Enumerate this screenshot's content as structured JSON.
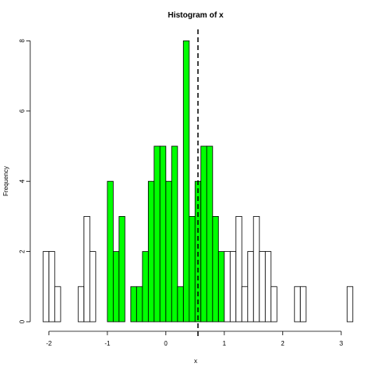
{
  "chart_data": {
    "type": "histogram",
    "title": "Histogram of x",
    "xlabel": "x",
    "ylabel": "Frequency",
    "xlim": [
      -2.15,
      3.2
    ],
    "ylim": [
      0,
      8.4
    ],
    "x_ticks": [
      -2,
      -1,
      0,
      1,
      2,
      3
    ],
    "y_ticks": [
      0,
      2,
      4,
      6,
      8
    ],
    "bin_width": 0.1,
    "bins": [
      {
        "x0": -2.1,
        "x1": -2.0,
        "count": 2
      },
      {
        "x0": -2.0,
        "x1": -1.9,
        "count": 2
      },
      {
        "x0": -1.9,
        "x1": -1.8,
        "count": 1
      },
      {
        "x0": -1.8,
        "x1": -1.7,
        "count": 0
      },
      {
        "x0": -1.7,
        "x1": -1.6,
        "count": 0
      },
      {
        "x0": -1.6,
        "x1": -1.5,
        "count": 0
      },
      {
        "x0": -1.5,
        "x1": -1.4,
        "count": 1
      },
      {
        "x0": -1.4,
        "x1": -1.3,
        "count": 3
      },
      {
        "x0": -1.3,
        "x1": -1.2,
        "count": 2
      },
      {
        "x0": -1.2,
        "x1": -1.1,
        "count": 0
      },
      {
        "x0": -1.1,
        "x1": -1.0,
        "count": 0
      },
      {
        "x0": -1.0,
        "x1": -0.9,
        "count": 4
      },
      {
        "x0": -0.9,
        "x1": -0.8,
        "count": 2
      },
      {
        "x0": -0.8,
        "x1": -0.7,
        "count": 3
      },
      {
        "x0": -0.7,
        "x1": -0.6,
        "count": 0
      },
      {
        "x0": -0.6,
        "x1": -0.5,
        "count": 1
      },
      {
        "x0": -0.5,
        "x1": -0.4,
        "count": 1
      },
      {
        "x0": -0.4,
        "x1": -0.3,
        "count": 2
      },
      {
        "x0": -0.3,
        "x1": -0.2,
        "count": 4
      },
      {
        "x0": -0.2,
        "x1": -0.1,
        "count": 5
      },
      {
        "x0": -0.1,
        "x1": 0.0,
        "count": 5
      },
      {
        "x0": 0.0,
        "x1": 0.1,
        "count": 4
      },
      {
        "x0": 0.1,
        "x1": 0.2,
        "count": 5
      },
      {
        "x0": 0.2,
        "x1": 0.3,
        "count": 1
      },
      {
        "x0": 0.3,
        "x1": 0.4,
        "count": 8
      },
      {
        "x0": 0.4,
        "x1": 0.5,
        "count": 3
      },
      {
        "x0": 0.5,
        "x1": 0.6,
        "count": 4
      },
      {
        "x0": 0.6,
        "x1": 0.7,
        "count": 5
      },
      {
        "x0": 0.7,
        "x1": 0.8,
        "count": 5
      },
      {
        "x0": 0.8,
        "x1": 0.9,
        "count": 3
      },
      {
        "x0": 0.9,
        "x1": 1.0,
        "count": 2
      },
      {
        "x0": 1.0,
        "x1": 1.1,
        "count": 2
      },
      {
        "x0": 1.1,
        "x1": 1.2,
        "count": 2
      },
      {
        "x0": 1.2,
        "x1": 1.3,
        "count": 3
      },
      {
        "x0": 1.3,
        "x1": 1.4,
        "count": 1
      },
      {
        "x0": 1.4,
        "x1": 1.5,
        "count": 2
      },
      {
        "x0": 1.5,
        "x1": 1.6,
        "count": 3
      },
      {
        "x0": 1.6,
        "x1": 1.7,
        "count": 2
      },
      {
        "x0": 1.7,
        "x1": 1.8,
        "count": 2
      },
      {
        "x0": 1.8,
        "x1": 1.9,
        "count": 1
      },
      {
        "x0": 1.9,
        "x1": 2.0,
        "count": 0
      },
      {
        "x0": 2.0,
        "x1": 2.1,
        "count": 0
      },
      {
        "x0": 2.1,
        "x1": 2.2,
        "count": 0
      },
      {
        "x0": 2.2,
        "x1": 2.3,
        "count": 1
      },
      {
        "x0": 2.3,
        "x1": 2.4,
        "count": 1
      },
      {
        "x0": 2.4,
        "x1": 2.5,
        "count": 0
      },
      {
        "x0": 2.5,
        "x1": 2.6,
        "count": 0
      },
      {
        "x0": 2.6,
        "x1": 2.7,
        "count": 0
      },
      {
        "x0": 2.7,
        "x1": 2.8,
        "count": 0
      },
      {
        "x0": 2.8,
        "x1": 2.9,
        "count": 0
      },
      {
        "x0": 2.9,
        "x1": 3.0,
        "count": 0
      },
      {
        "x0": 3.0,
        "x1": 3.1,
        "count": 0
      },
      {
        "x0": 3.1,
        "x1": 3.2,
        "count": 1
      }
    ],
    "highlight_range": [
      -1.0,
      1.0
    ],
    "highlight_color": "#00ff00",
    "bar_color": "#ffffff",
    "bar_border_color": "#000000",
    "vline": {
      "x": 0.55,
      "style": "dashed",
      "color": "#000000"
    },
    "grid": false,
    "legend": "none"
  }
}
